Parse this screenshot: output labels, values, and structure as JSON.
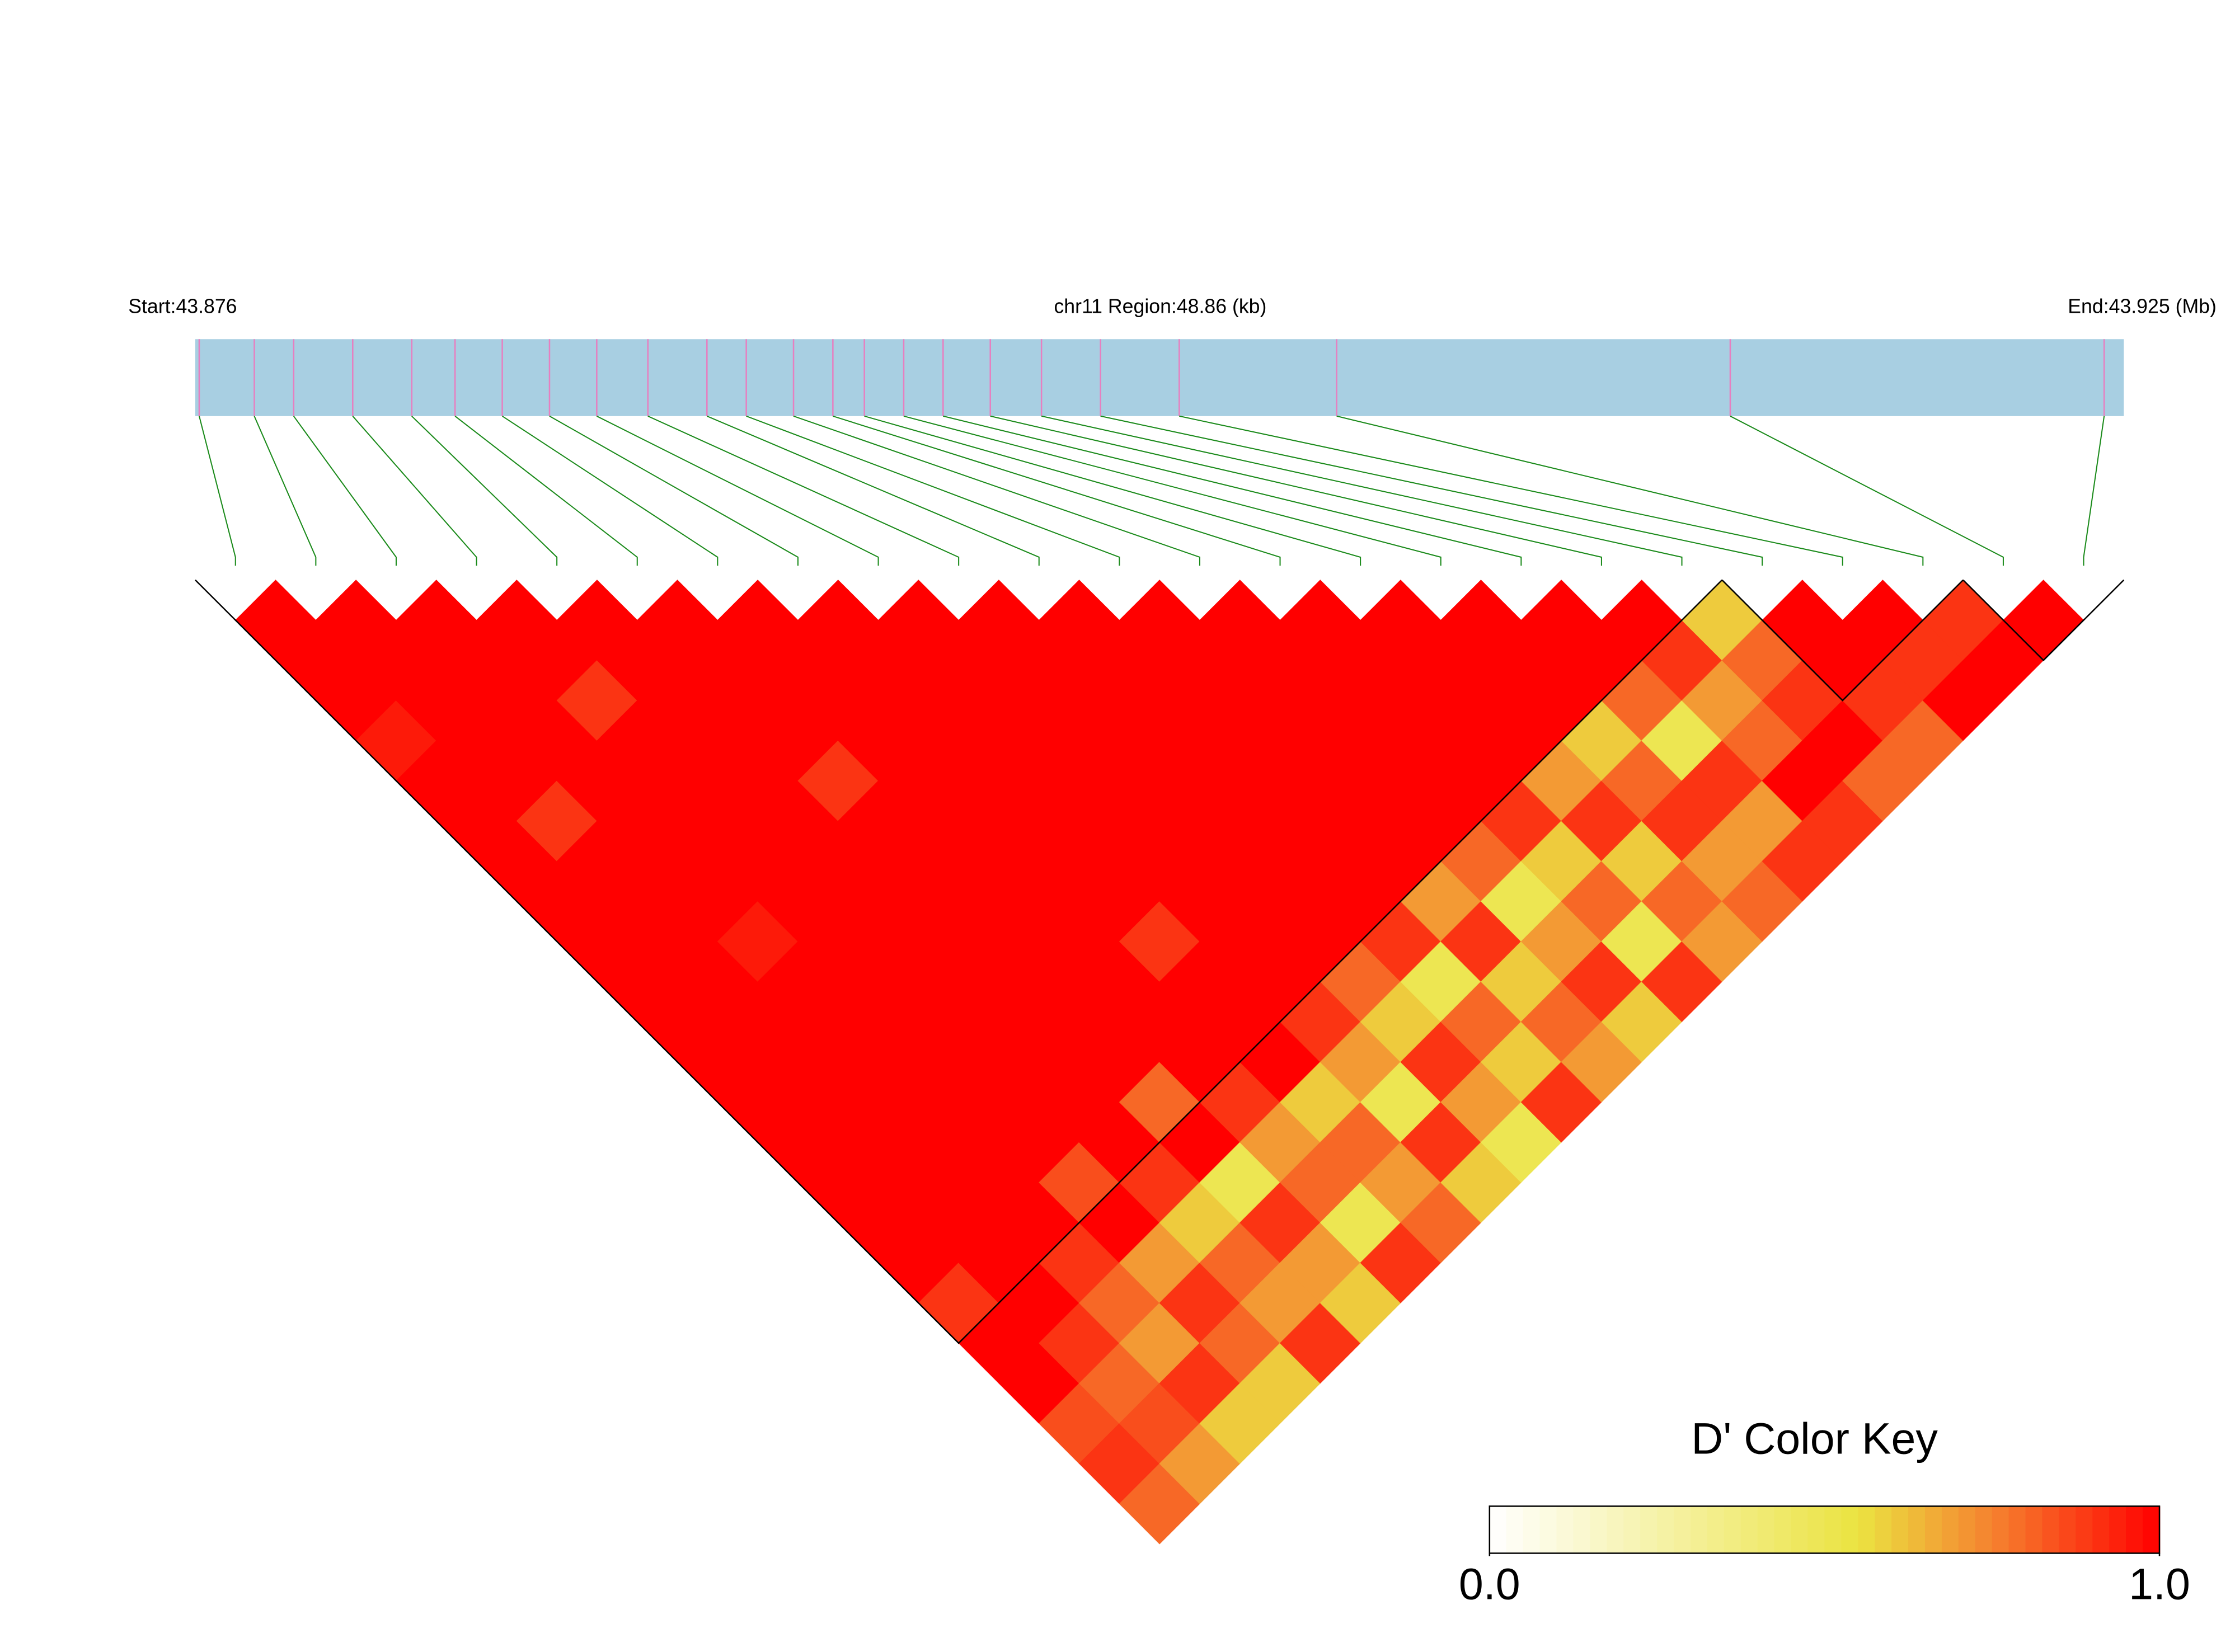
{
  "chart_data": {
    "type": "ld-heatmap",
    "start_label": "Start:43.876",
    "region_label": "chr11 Region:48.86 (kb)",
    "end_label": "End:43.925 (Mb)",
    "xlim": [
      43.876,
      43.925
    ],
    "bar_color": "#a8cfe2",
    "snp_line_color": "#e77fc0",
    "link_color": "#1a8a1a",
    "positions": [
      43.8761,
      43.8775,
      43.8785,
      43.88,
      43.8815,
      43.8826,
      43.8838,
      43.885,
      43.8862,
      43.8875,
      43.889,
      43.89,
      43.8912,
      43.8922,
      43.893,
      43.894,
      43.895,
      43.8962,
      43.8975,
      43.899,
      43.901,
      43.905,
      43.915,
      43.9245
    ],
    "matrix": [
      [
        1,
        1,
        1,
        0.95,
        1,
        1,
        1,
        1,
        1,
        1,
        1,
        1,
        1,
        1,
        1,
        1,
        1,
        0.9,
        1,
        1,
        0.85,
        0.9,
        0.8
      ],
      [
        1,
        1,
        1,
        1,
        1,
        0.9,
        1,
        1,
        1,
        1,
        1,
        1,
        1,
        1,
        1,
        1,
        1,
        1,
        0.9,
        0.8,
        0.85,
        0.7
      ],
      [
        1,
        1,
        1,
        1,
        1,
        1,
        1,
        1,
        0.95,
        1,
        1,
        1,
        1,
        1,
        1,
        1,
        0.9,
        0.8,
        0.7,
        0.9,
        0.6
      ],
      [
        1,
        1,
        0.9,
        1,
        1,
        1,
        1,
        1,
        1,
        1,
        1,
        1,
        1,
        1,
        0.85,
        1,
        0.7,
        0.9,
        0.8,
        0.6
      ],
      [
        1,
        1,
        1,
        1,
        1,
        1,
        1,
        1,
        1,
        1,
        1,
        1,
        1,
        1,
        0.9,
        0.6,
        0.8,
        0.7,
        0.9
      ],
      [
        1,
        1,
        1,
        1,
        0.9,
        1,
        1,
        1,
        1,
        1,
        1,
        1,
        0.8,
        1,
        0.5,
        0.9,
        0.7,
        0.6
      ],
      [
        1,
        1,
        1,
        1,
        1,
        1,
        1,
        1,
        1,
        1,
        1,
        1,
        0.9,
        0.7,
        0.8,
        0.5,
        0.9
      ],
      [
        1,
        1,
        1,
        1,
        1,
        1,
        1,
        1,
        0.9,
        1,
        1,
        1,
        0.6,
        0.8,
        0.7,
        0.8
      ],
      [
        1,
        1,
        1,
        1,
        1,
        1,
        1,
        1,
        1,
        1,
        0.9,
        0.7,
        0.5,
        0.9,
        0.6
      ],
      [
        1,
        1,
        1,
        1,
        1,
        1,
        1,
        1,
        1,
        0.8,
        0.6,
        0.9,
        0.7,
        0.5
      ],
      [
        1,
        1,
        1,
        1,
        1,
        1,
        1,
        1,
        0.9,
        0.5,
        0.8,
        0.6,
        0.9
      ],
      [
        1,
        1,
        1,
        1,
        1,
        1,
        1,
        0.7,
        0.9,
        0.6,
        0.8,
        0.7
      ],
      [
        1,
        1,
        1,
        1,
        1,
        1,
        0.8,
        0.5,
        0.7,
        0.9,
        0.6
      ],
      [
        1,
        1,
        1,
        1,
        1,
        0.9,
        0.6,
        0.8,
        0.5,
        0.9
      ],
      [
        1,
        1,
        1,
        1,
        0.7,
        0.9,
        0.6,
        0.8,
        0.7
      ],
      [
        1,
        1,
        1,
        0.6,
        0.8,
        0.9,
        0.7,
        0.8
      ],
      [
        1,
        1,
        0.8,
        0.5,
        0.9,
        0.7,
        0.9
      ],
      [
        1,
        0.9,
        0.7,
        0.8,
        1,
        0.9
      ],
      [
        0.6,
        0.8,
        0.9,
        1,
        0.8
      ],
      [
        1,
        1,
        0.9,
        0.8
      ],
      [
        1,
        0.9,
        1
      ],
      [
        0.9,
        1
      ],
      [
        1
      ]
    ],
    "blocks": [
      [
        0,
        18
      ],
      [
        19,
        21
      ],
      [
        22,
        23
      ]
    ],
    "colorscale": [
      [
        0,
        "#ffffff"
      ],
      [
        0.55,
        "#ebe341"
      ],
      [
        0.75,
        "#f5822f"
      ],
      [
        1,
        "#ff0000"
      ]
    ],
    "key_title": "D' Color Key",
    "key_ticks": [
      {
        "value": 0,
        "label": "0.0"
      },
      {
        "value": 1,
        "label": "1.0"
      }
    ]
  }
}
